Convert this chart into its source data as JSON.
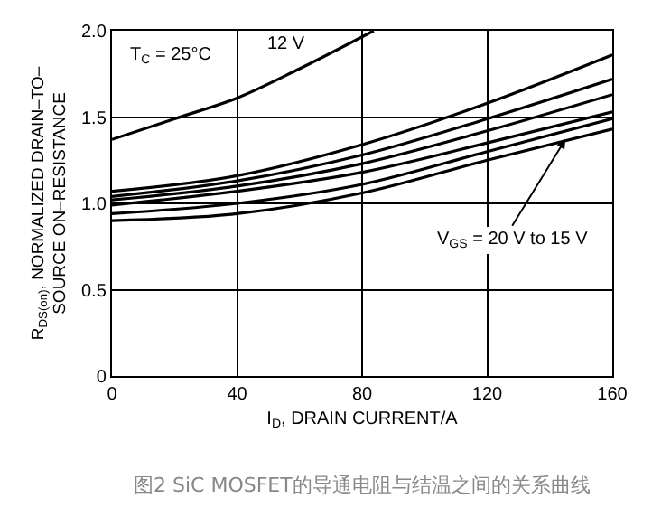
{
  "chart_data": {
    "type": "line",
    "xlabel": "I$_{D}$, DRAIN CURRENT/A",
    "ylabel": "R$_{DS(on)}$, NORMALIZED DRAIN–TO–\nSOURCE ON–RESISTANCE",
    "series": [
      {
        "color": "#000000",
        "x": [
          0,
          20,
          40,
          60,
          83.7
        ],
        "values": [
          1.37,
          1.49,
          1.61,
          1.78,
          2.0
        ]
      },
      {
        "color": "#000000",
        "x": [
          0,
          40,
          80,
          120,
          160
        ],
        "values": [
          1.07,
          1.16,
          1.34,
          1.58,
          1.86
        ]
      },
      {
        "color": "#000000",
        "x": [
          0,
          40,
          80,
          120,
          160
        ],
        "values": [
          1.04,
          1.13,
          1.28,
          1.49,
          1.72
        ]
      },
      {
        "color": "#000000",
        "x": [
          0,
          40,
          80,
          120,
          160
        ],
        "values": [
          1.02,
          1.1,
          1.23,
          1.42,
          1.63
        ]
      },
      {
        "color": "#000000",
        "x": [
          0,
          40,
          80,
          120,
          160
        ],
        "values": [
          0.99,
          1.07,
          1.18,
          1.35,
          1.53
        ]
      },
      {
        "color": "#000000",
        "x": [
          0,
          40,
          80,
          120,
          160
        ],
        "values": [
          0.94,
          1.0,
          1.11,
          1.3,
          1.49
        ]
      },
      {
        "color": "#000000",
        "x": [
          0,
          40,
          80,
          120,
          160
        ],
        "values": [
          0.9,
          0.94,
          1.06,
          1.25,
          1.43
        ]
      }
    ],
    "xlim": [
      0,
      160
    ],
    "xticks": [
      0,
      40,
      80,
      120,
      160
    ],
    "ylim": [
      0,
      2.0
    ],
    "yticks": [
      {
        "value": 0,
        "label": "0"
      },
      0.5,
      {
        "value": 1.0,
        "label": "1.0"
      },
      1.5,
      {
        "value": 2.0,
        "label": "2.0"
      }
    ],
    "grid": true,
    "marker": "none",
    "line_style": "solid",
    "annotations": [
      "T$_{C}$ = 25°C",
      {
        "text": "12 V",
        "x": 56,
        "y": 1.92
      },
      {
        "text": "V$_{GS}$ = 20 V to 15 V",
        "x": 145,
        "y": 1.37
      },
      "图2 SiC MOSFET的导通电阻与结温之间的关系曲线"
    ]
  }
}
